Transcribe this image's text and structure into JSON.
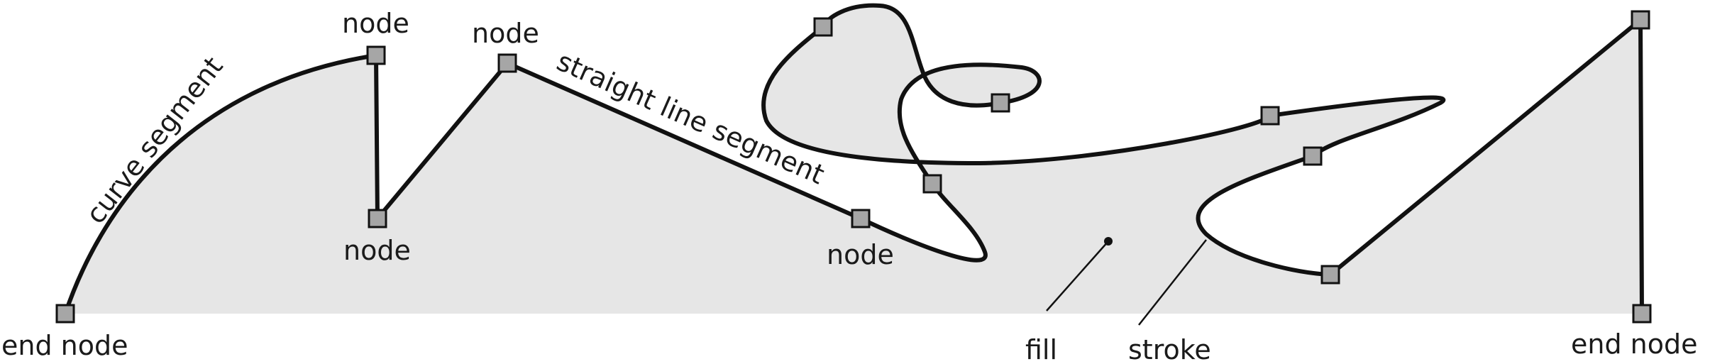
{
  "labels": {
    "node_top_left": "node",
    "node_top_mid": "node",
    "node_bottom_left": "node",
    "node_bottom_mid": "node",
    "end_node_left": "end node",
    "end_node_right": "end node",
    "curve_segment": "curve segment",
    "straight_line_segment": "straight line segment",
    "fill": "fill",
    "stroke": "stroke"
  },
  "colors": {
    "fill": "#e6e6e6",
    "stroke": "#111111",
    "node": "#a6a6a6"
  }
}
